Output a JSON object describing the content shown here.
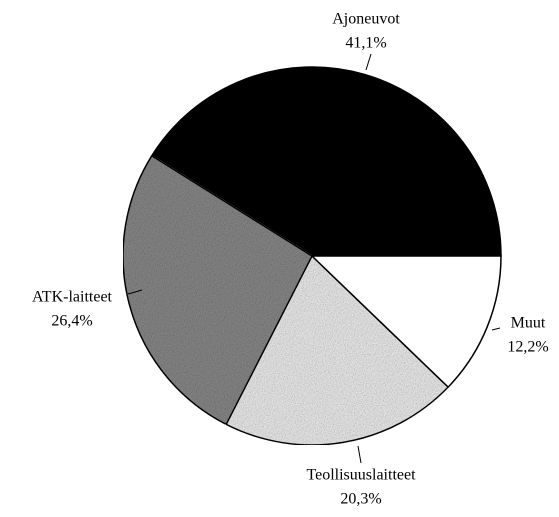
{
  "chart_data": {
    "type": "pie",
    "categories": [
      "Ajoneuvot",
      "ATK-laitteet",
      "Teollisuuslaitteet",
      "Muut"
    ],
    "values": [
      41.1,
      26.4,
      20.3,
      12.2
    ],
    "value_labels": [
      "41,1%",
      "26,4%",
      "20,3%",
      "12,2%"
    ],
    "colors": [
      "#000000",
      "#8c8c8c",
      "#f3f3f3",
      "#ffffff"
    ]
  }
}
